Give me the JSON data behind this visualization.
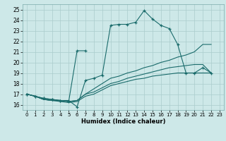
{
  "xlabel": "Humidex (Indice chaleur)",
  "bg_color": "#cde8e8",
  "grid_color": "#aacccc",
  "line_color": "#1a6b6b",
  "xlim": [
    -0.5,
    23.5
  ],
  "ylim": [
    15.5,
    25.5
  ],
  "yticks": [
    16,
    17,
    18,
    19,
    20,
    21,
    22,
    23,
    24,
    25
  ],
  "xticks": [
    0,
    1,
    2,
    3,
    4,
    5,
    6,
    7,
    8,
    9,
    10,
    11,
    12,
    13,
    14,
    15,
    16,
    17,
    18,
    19,
    20,
    21,
    22,
    23
  ],
  "lines": [
    {
      "x": [
        0,
        1,
        2,
        3,
        4,
        5,
        6,
        7,
        8,
        9,
        10,
        11,
        12,
        13,
        14,
        15,
        16,
        17,
        18,
        19,
        20,
        21,
        22
      ],
      "y": [
        17.0,
        16.8,
        16.6,
        16.5,
        16.4,
        16.4,
        15.8,
        18.3,
        18.5,
        18.8,
        23.5,
        23.6,
        23.6,
        23.8,
        24.9,
        24.1,
        23.5,
        23.2,
        21.7,
        19.0,
        19.0,
        19.5,
        19.0
      ],
      "marker": "+"
    },
    {
      "x": [
        0,
        1,
        2,
        3,
        4,
        5,
        6,
        7
      ],
      "y": [
        17.0,
        16.8,
        16.6,
        16.5,
        16.4,
        16.3,
        21.1,
        21.1
      ],
      "marker": "+"
    },
    {
      "x": [
        0,
        1,
        2,
        3,
        4,
        5,
        6,
        7,
        8,
        9,
        10,
        11,
        12,
        13,
        14,
        15,
        16,
        17,
        18,
        19,
        20,
        21,
        22
      ],
      "y": [
        17.0,
        16.8,
        16.5,
        16.4,
        16.4,
        16.3,
        16.4,
        17.0,
        17.5,
        18.0,
        18.5,
        18.7,
        19.0,
        19.2,
        19.5,
        19.7,
        20.0,
        20.2,
        20.5,
        20.7,
        21.0,
        21.7,
        21.7
      ],
      "marker": null
    },
    {
      "x": [
        0,
        1,
        2,
        3,
        4,
        5,
        6,
        7,
        8,
        9,
        10,
        11,
        12,
        13,
        14,
        15,
        16,
        17,
        18,
        19,
        20,
        21,
        22
      ],
      "y": [
        17.0,
        16.8,
        16.5,
        16.4,
        16.4,
        16.3,
        16.4,
        17.0,
        17.2,
        17.6,
        18.0,
        18.2,
        18.5,
        18.7,
        18.9,
        19.1,
        19.3,
        19.5,
        19.6,
        19.7,
        19.8,
        19.8,
        19.0
      ],
      "marker": null
    },
    {
      "x": [
        0,
        1,
        2,
        3,
        4,
        5,
        6,
        7,
        8,
        9,
        10,
        11,
        12,
        13,
        14,
        15,
        16,
        17,
        18,
        19,
        20,
        21,
        22
      ],
      "y": [
        17.0,
        16.8,
        16.5,
        16.4,
        16.3,
        16.2,
        16.3,
        16.8,
        17.0,
        17.4,
        17.8,
        18.0,
        18.2,
        18.4,
        18.5,
        18.7,
        18.8,
        18.9,
        19.0,
        19.0,
        19.0,
        19.0,
        19.0
      ],
      "marker": null
    }
  ]
}
